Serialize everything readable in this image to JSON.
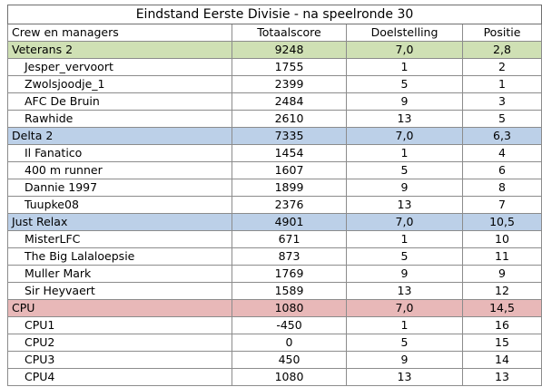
{
  "title": "Eindstand Eerste Divisie - na speelronde 30",
  "headers": [
    "Crew en managers",
    "Totaalscore",
    "Doelstelling",
    "Positie"
  ],
  "crews": [
    {
      "name": "Veterans 2",
      "total": "9248",
      "goal": "7,0",
      "position": "2,8",
      "color": "#cfe0b4",
      "managers": [
        {
          "name": "Jesper_vervoort",
          "score": "1755",
          "goal": "1",
          "position": "2"
        },
        {
          "name": "Zwolsjoodje_1",
          "score": "2399",
          "goal": "5",
          "position": "1"
        },
        {
          "name": "AFC De Bruin",
          "score": "2484",
          "goal": "9",
          "position": "3"
        },
        {
          "name": "Rawhide",
          "score": "2610",
          "goal": "13",
          "position": "5"
        }
      ]
    },
    {
      "name": "Delta 2",
      "total": "7335",
      "goal": "7,0",
      "position": "6,3",
      "color": "#bcd0e8",
      "managers": [
        {
          "name": "Il Fanatico",
          "score": "1454",
          "goal": "1",
          "position": "4"
        },
        {
          "name": "400 m runner",
          "score": "1607",
          "goal": "5",
          "position": "6"
        },
        {
          "name": "Dannie 1997",
          "score": "1899",
          "goal": "9",
          "position": "8"
        },
        {
          "name": "Tuupke08",
          "score": "2376",
          "goal": "13",
          "position": "7"
        }
      ]
    },
    {
      "name": "Just Relax",
      "total": "4901",
      "goal": "7,0",
      "position": "10,5",
      "color": "#bcd0e8",
      "managers": [
        {
          "name": "MisterLFC",
          "score": "671",
          "goal": "1",
          "position": "10"
        },
        {
          "name": "The Big Lalaloepsie",
          "score": "873",
          "goal": "5",
          "position": "11"
        },
        {
          "name": "Muller Mark",
          "score": "1769",
          "goal": "9",
          "position": "9"
        },
        {
          "name": "Sir Heyvaert",
          "score": "1589",
          "goal": "13",
          "position": "12"
        }
      ]
    },
    {
      "name": "CPU",
      "total": "1080",
      "goal": "7,0",
      "position": "14,5",
      "color": "#e8b8b8",
      "managers": [
        {
          "name": "CPU1",
          "score": "-450",
          "goal": "1",
          "position": "16"
        },
        {
          "name": "CPU2",
          "score": "0",
          "goal": "5",
          "position": "15"
        },
        {
          "name": "CPU3",
          "score": "450",
          "goal": "9",
          "position": "14"
        },
        {
          "name": "CPU4",
          "score": "1080",
          "goal": "13",
          "position": "13"
        }
      ]
    }
  ]
}
